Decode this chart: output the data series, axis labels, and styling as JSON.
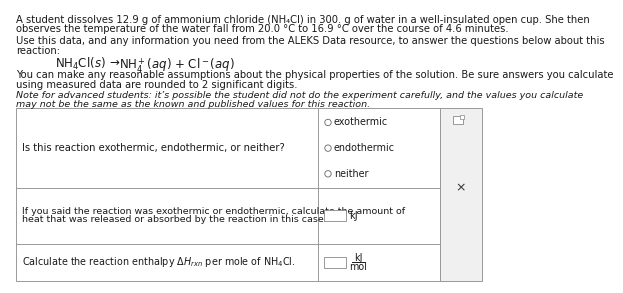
{
  "bg_color": "#ffffff",
  "text_color": "#1a1a1a",
  "table_border_color": "#999999",
  "fs_body": 7.2,
  "fs_italic": 6.8,
  "fs_reaction": 8.5,
  "para1_line1": "A student dissolves 12.9 g of ammonium chloride (NH₄Cl) in 300. g of water in a well-insulated open cup. She then",
  "para1_line2": "observes the temperature of the water fall from 20.0 °C to 16.9 °C over the course of 4.6 minutes.",
  "para2_line1": "Use this data, and any information you need from the ALEKS Data resource, to answer the questions below about this",
  "para2_line2": "reaction:",
  "para3_line1": "You can make any reasonable assumptions about the physical properties of the solution. Be sure answers you calculate",
  "para3_line2": "using measured data are rounded to 2 significant digits.",
  "para4_line1": "Note for advanced students: it’s possible the student did not do the experiment carefully, and the values you calculate",
  "para4_line2": "may not be the same as the known and published values for this reaction.",
  "row1_question": "Is this reaction exothermic, endothermic, or neither?",
  "row1_options": [
    "exothermic",
    "endothermic",
    "neither"
  ],
  "row2_line1": "If you said the reaction was exothermic or endothermic, calculate the amount of",
  "row2_line2": "heat that was released or absorbed by the reaction in this case.",
  "row2_unit": "kJ",
  "row3_text": "Calculate the reaction enthalpy",
  "row3_unit_top": "kJ",
  "row3_unit_bot": "mol",
  "sidebar_bg": "#f0f0f0",
  "sidebar_border": "#aaaaaa",
  "radio_edge": "#666666",
  "input_border": "#888888",
  "input_bg": "#ffffff"
}
